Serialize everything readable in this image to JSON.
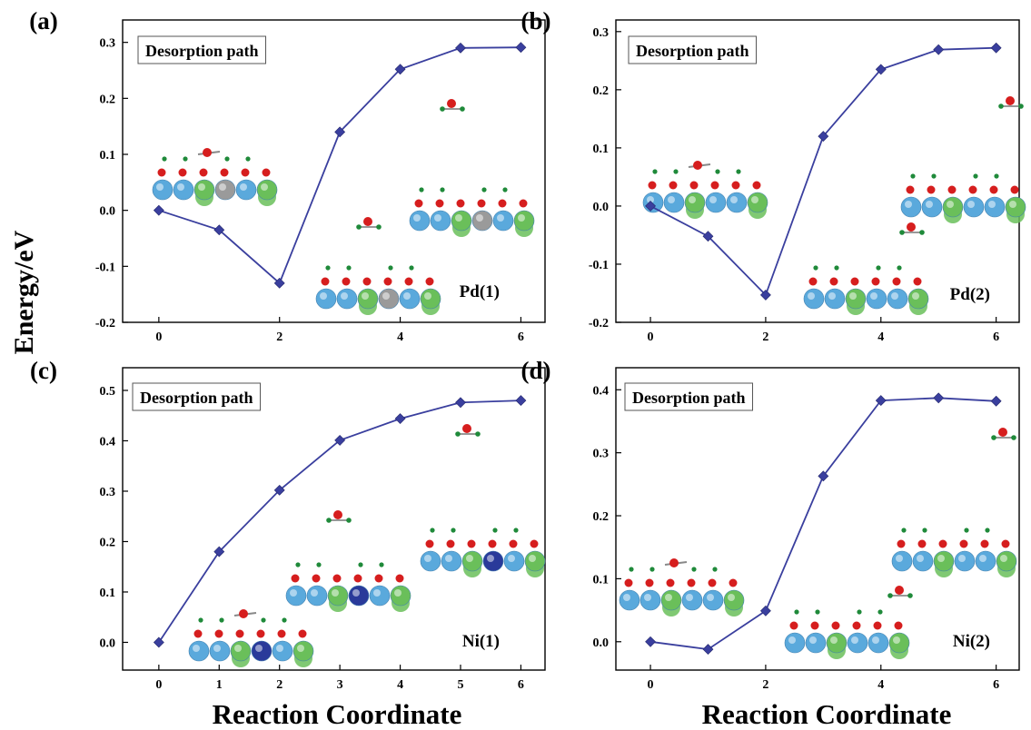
{
  "figure": {
    "ylabel": "Energy/eV",
    "xlabel": "Reaction Coordinate"
  },
  "colors": {
    "line": "#3a3f9e",
    "marker": "#3a3f9e",
    "frame": "#000000",
    "atom_blue": "#5aa9dc",
    "atom_green": "#6abf5a",
    "atom_gray": "#9a9a9a",
    "atom_red": "#d61e1e",
    "atom_dark": "#2a3a9a",
    "atom_h": "#1f8a3a"
  },
  "chart_data": [
    {
      "type": "line",
      "panel": "(a)",
      "annotation": "Desorption path",
      "site_label": "Pd(1)",
      "x": [
        0,
        1,
        2,
        3,
        4,
        5,
        6
      ],
      "series": [
        {
          "values": [
            0.0,
            -0.035,
            -0.13,
            0.14,
            0.252,
            0.29,
            0.291
          ]
        }
      ],
      "xlim": [
        -0.6,
        6.4
      ],
      "ylim": [
        -0.2,
        0.34
      ],
      "xticks": [
        "0",
        "2",
        "4",
        "6"
      ],
      "yticks": [
        "-0.2",
        "-0.1",
        "0.0",
        "0.1",
        "0.2",
        "0.3"
      ]
    },
    {
      "type": "line",
      "panel": "(b)",
      "annotation": "Desorption path",
      "site_label": "Pd(2)",
      "x": [
        0,
        1,
        2,
        3,
        4,
        5,
        6
      ],
      "series": [
        {
          "values": [
            0.0,
            -0.052,
            -0.153,
            0.12,
            0.235,
            0.269,
            0.272
          ]
        }
      ],
      "xlim": [
        -0.6,
        6.4
      ],
      "ylim": [
        -0.2,
        0.32
      ],
      "xticks": [
        "0",
        "2",
        "4",
        "6"
      ],
      "yticks": [
        "-0.2",
        "-0.1",
        "0.0",
        "0.1",
        "0.2",
        "0.3"
      ]
    },
    {
      "type": "line",
      "panel": "(c)",
      "annotation": "Desorption path",
      "site_label": "Ni(1)",
      "x": [
        0,
        1,
        2,
        3,
        4,
        5,
        6
      ],
      "series": [
        {
          "values": [
            0.0,
            0.18,
            0.302,
            0.401,
            0.444,
            0.476,
            0.48
          ]
        }
      ],
      "xlim": [
        -0.6,
        6.4
      ],
      "ylim": [
        -0.055,
        0.545
      ],
      "xticks": [
        "0",
        "1",
        "2",
        "3",
        "4",
        "5",
        "6"
      ],
      "yticks": [
        "0.0",
        "0.1",
        "0.2",
        "0.3",
        "0.4",
        "0.5"
      ]
    },
    {
      "type": "line",
      "panel": "(d)",
      "annotation": "Desorption path",
      "site_label": "Ni(2)",
      "x": [
        0,
        1,
        2,
        3,
        4,
        5,
        6
      ],
      "series": [
        {
          "values": [
            0.0,
            -0.012,
            0.049,
            0.263,
            0.383,
            0.387,
            0.382
          ]
        }
      ],
      "xlim": [
        -0.6,
        6.4
      ],
      "ylim": [
        -0.045,
        0.435
      ],
      "xticks": [
        "0",
        "2",
        "4",
        "6"
      ],
      "yticks": [
        "0.0",
        "0.1",
        "0.2",
        "0.3",
        "0.4"
      ]
    }
  ]
}
